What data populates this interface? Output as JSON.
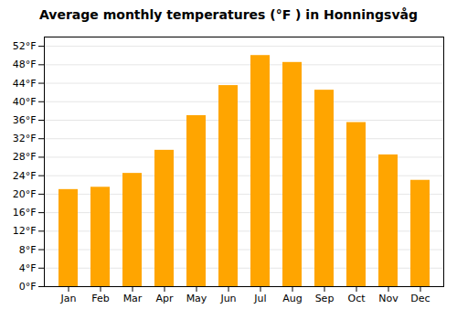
{
  "chart_data": {
    "type": "bar",
    "title": "Average monthly temperatures (°F ) in Honningsvåg",
    "categories": [
      "Jan",
      "Feb",
      "Mar",
      "Apr",
      "May",
      "Jun",
      "Jul",
      "Aug",
      "Sep",
      "Oct",
      "Nov",
      "Dec"
    ],
    "values": [
      21,
      21.5,
      24.5,
      29.5,
      37,
      43.5,
      50,
      48.5,
      42.5,
      35.5,
      28.5,
      23
    ],
    "color": "#FFA500",
    "ylim": [
      0,
      54
    ],
    "yticks": [
      {
        "value": 0,
        "label": "0°F"
      },
      {
        "value": 4,
        "label": "4°F"
      },
      {
        "value": 8,
        "label": "8°F"
      },
      {
        "value": 12,
        "label": "12°F"
      },
      {
        "value": 16,
        "label": "16°F"
      },
      {
        "value": 20,
        "label": "20°F"
      },
      {
        "value": 24,
        "label": "24°F"
      },
      {
        "value": 28,
        "label": "28°F"
      },
      {
        "value": 32,
        "label": "32°F"
      },
      {
        "value": 36,
        "label": "36°F"
      },
      {
        "value": 40,
        "label": "40°F"
      },
      {
        "value": 44,
        "label": "44°F"
      },
      {
        "value": 48,
        "label": "48°F"
      },
      {
        "value": 52,
        "label": "52°F"
      }
    ],
    "grid": true
  }
}
